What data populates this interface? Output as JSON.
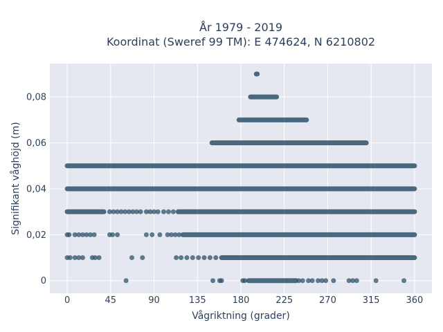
{
  "chart_data": {
    "type": "scatter",
    "title_line1": "År 1979 - 2019",
    "title_line2": "Koordinat (Sweref 99 TM): E 474624, N 6210802",
    "xlabel": "Vågriktning (grader)",
    "ylabel": "Signifikant våghöjd (m)",
    "xlim": [
      -18,
      378
    ],
    "ylim": [
      -0.0055,
      0.0945
    ],
    "xticks": [
      0,
      45,
      90,
      135,
      180,
      225,
      270,
      315,
      360
    ],
    "xtick_labels": [
      "0",
      "45",
      "90",
      "135",
      "180",
      "225",
      "270",
      "315",
      "360"
    ],
    "yticks": [
      0,
      0.02,
      0.04,
      0.06,
      0.08
    ],
    "ytick_labels": [
      "0",
      "0,02",
      "0,04",
      "0,06",
      "0,08"
    ],
    "grid": true,
    "marker_color": "#2f5168",
    "bands": [
      {
        "y": 0.09,
        "ranges": [
          [
            196,
            197
          ]
        ]
      },
      {
        "y": 0.08,
        "ranges": [
          [
            190,
            217
          ]
        ]
      },
      {
        "y": 0.07,
        "ranges": [
          [
            178,
            248
          ]
        ]
      },
      {
        "y": 0.06,
        "ranges": [
          [
            150,
            310
          ]
        ]
      },
      {
        "y": 0.05,
        "ranges": [
          [
            0,
            360
          ]
        ]
      },
      {
        "y": 0.04,
        "ranges": [
          [
            0,
            360
          ]
        ]
      },
      {
        "y": 0.03,
        "ranges": [
          [
            0,
            38
          ],
          [
            115,
            360
          ]
        ]
      },
      {
        "y": 0.02,
        "ranges": [
          [
            120,
            360
          ]
        ]
      },
      {
        "y": 0.01,
        "ranges": [
          [
            160,
            360
          ]
        ]
      },
      {
        "y": 0.0,
        "ranges": [
          [
            188,
            237
          ]
        ]
      }
    ],
    "sparse_points": [
      {
        "x": 44,
        "y": 0.03
      },
      {
        "x": 48,
        "y": 0.03
      },
      {
        "x": 52,
        "y": 0.03
      },
      {
        "x": 56,
        "y": 0.03
      },
      {
        "x": 60,
        "y": 0.03
      },
      {
        "x": 64,
        "y": 0.03
      },
      {
        "x": 68,
        "y": 0.03
      },
      {
        "x": 72,
        "y": 0.03
      },
      {
        "x": 76,
        "y": 0.03
      },
      {
        "x": 82,
        "y": 0.03
      },
      {
        "x": 86,
        "y": 0.03
      },
      {
        "x": 90,
        "y": 0.03
      },
      {
        "x": 94,
        "y": 0.03
      },
      {
        "x": 100,
        "y": 0.03
      },
      {
        "x": 105,
        "y": 0.03
      },
      {
        "x": 110,
        "y": 0.03
      },
      {
        "x": 0,
        "y": 0.02
      },
      {
        "x": 2,
        "y": 0.02
      },
      {
        "x": 8,
        "y": 0.02
      },
      {
        "x": 12,
        "y": 0.02
      },
      {
        "x": 16,
        "y": 0.02
      },
      {
        "x": 20,
        "y": 0.02
      },
      {
        "x": 24,
        "y": 0.02
      },
      {
        "x": 28,
        "y": 0.02
      },
      {
        "x": 44,
        "y": 0.02
      },
      {
        "x": 47,
        "y": 0.02
      },
      {
        "x": 52,
        "y": 0.02
      },
      {
        "x": 82,
        "y": 0.02
      },
      {
        "x": 88,
        "y": 0.02
      },
      {
        "x": 96,
        "y": 0.02
      },
      {
        "x": 104,
        "y": 0.02
      },
      {
        "x": 108,
        "y": 0.02
      },
      {
        "x": 112,
        "y": 0.02
      },
      {
        "x": 116,
        "y": 0.02
      },
      {
        "x": 0,
        "y": 0.01
      },
      {
        "x": 3,
        "y": 0.01
      },
      {
        "x": 8,
        "y": 0.01
      },
      {
        "x": 12,
        "y": 0.01
      },
      {
        "x": 16,
        "y": 0.01
      },
      {
        "x": 26,
        "y": 0.01
      },
      {
        "x": 29,
        "y": 0.01
      },
      {
        "x": 33,
        "y": 0.01
      },
      {
        "x": 67,
        "y": 0.01
      },
      {
        "x": 78,
        "y": 0.01
      },
      {
        "x": 113,
        "y": 0.01
      },
      {
        "x": 118,
        "y": 0.01
      },
      {
        "x": 124,
        "y": 0.01
      },
      {
        "x": 130,
        "y": 0.01
      },
      {
        "x": 136,
        "y": 0.01
      },
      {
        "x": 142,
        "y": 0.01
      },
      {
        "x": 148,
        "y": 0.01
      },
      {
        "x": 154,
        "y": 0.01
      },
      {
        "x": 61,
        "y": 0.0
      },
      {
        "x": 151,
        "y": 0.0
      },
      {
        "x": 158,
        "y": 0.0
      },
      {
        "x": 160,
        "y": 0.0
      },
      {
        "x": 182,
        "y": 0.0
      },
      {
        "x": 184,
        "y": 0.0
      },
      {
        "x": 240,
        "y": 0.0
      },
      {
        "x": 244,
        "y": 0.0
      },
      {
        "x": 250,
        "y": 0.0
      },
      {
        "x": 254,
        "y": 0.0
      },
      {
        "x": 260,
        "y": 0.0
      },
      {
        "x": 264,
        "y": 0.0
      },
      {
        "x": 268,
        "y": 0.0
      },
      {
        "x": 276,
        "y": 0.0
      },
      {
        "x": 292,
        "y": 0.0
      },
      {
        "x": 296,
        "y": 0.0
      },
      {
        "x": 300,
        "y": 0.0
      },
      {
        "x": 320,
        "y": 0.0
      },
      {
        "x": 349,
        "y": 0.0
      }
    ]
  }
}
